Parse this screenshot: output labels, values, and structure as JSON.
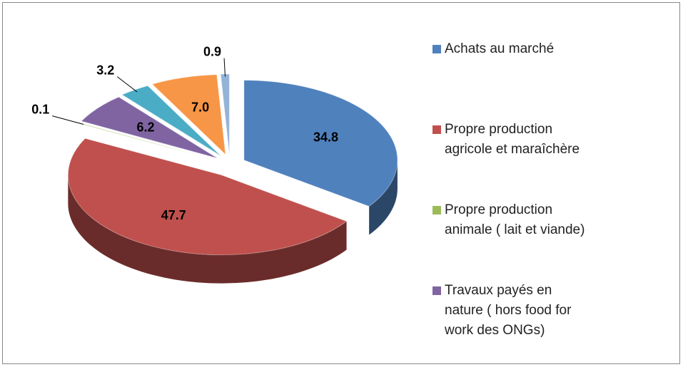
{
  "chart_data": {
    "type": "pie",
    "categories": [
      "Achats au marché",
      "Propre production agricole et maraîchère",
      "Propre production animale ( lait et viande)",
      "Travaux payés en nature ( hors food for work des ONGs)",
      null,
      null,
      null
    ],
    "values": [
      34.8,
      47.7,
      0.1,
      6.2,
      3.2,
      7.0,
      0.9
    ],
    "value_labels": [
      "34.8",
      "47.7",
      "0.1",
      "6.2",
      "3.2",
      "7.0",
      "0.9"
    ],
    "colors": [
      "#4f81bd",
      "#c0504d",
      "#9bbb59",
      "#8064a2",
      "#4bacc6",
      "#f79646",
      "#95b3d7"
    ]
  }
}
